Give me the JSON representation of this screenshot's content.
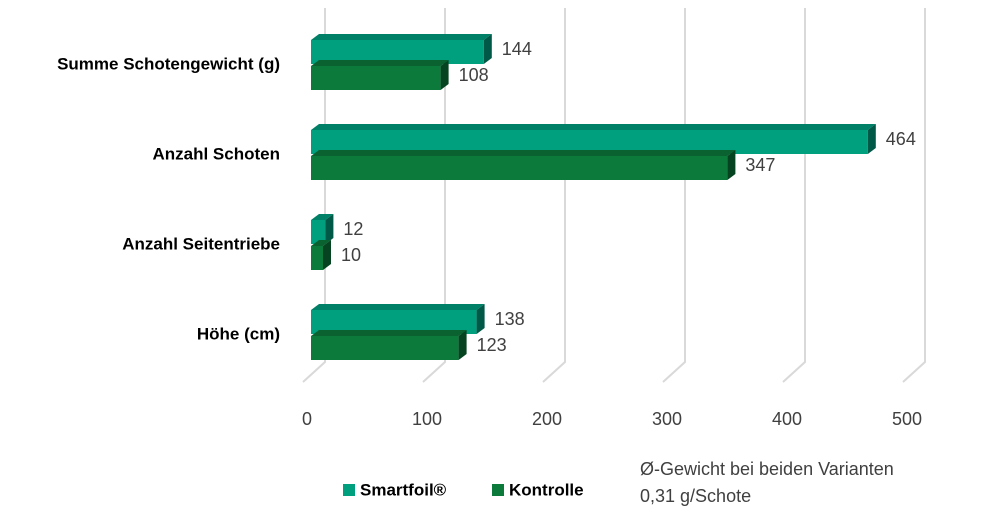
{
  "chart_data": {
    "type": "bar3d-horizontal",
    "categories": [
      "Summe Schotengewicht (g)",
      "Anzahl Schoten",
      "Anzahl Seitentriebe",
      "Höhe (cm)"
    ],
    "series": [
      {
        "name": "Smartfoil®",
        "color": "#00a07f",
        "values": [
          144,
          464,
          12,
          138
        ]
      },
      {
        "name": "Kontrolle",
        "color": "#0b7a3b",
        "values": [
          108,
          347,
          10,
          123
        ]
      }
    ],
    "xlim": [
      0,
      500
    ],
    "xticks": [
      0,
      100,
      200,
      300,
      400,
      500
    ],
    "grid": true,
    "annotations": [
      "Ø-Gewicht bei beiden Varianten",
      "0,31 g/Schote"
    ]
  }
}
